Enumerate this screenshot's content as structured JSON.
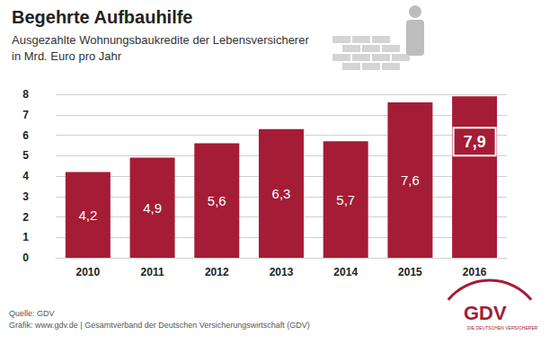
{
  "chart_data": {
    "type": "bar",
    "title": "Begehrte Aufbauhilfe",
    "subtitle": "Ausgezahlte Wohnungsbaukredite der Lebensversicherer\nin Mrd. Euro pro Jahr",
    "categories": [
      "2010",
      "2011",
      "2012",
      "2013",
      "2014",
      "2015",
      "2016"
    ],
    "values": [
      4.2,
      4.9,
      5.6,
      6.3,
      5.7,
      7.6,
      7.9
    ],
    "value_labels": [
      "4,2",
      "4,9",
      "5,6",
      "6,3",
      "5,7",
      "7,6",
      "7,9"
    ],
    "color": "#a51c36",
    "ylim": [
      0,
      8
    ],
    "yticks": [
      0,
      1,
      2,
      3,
      4,
      5,
      6,
      7,
      8
    ],
    "grid": true,
    "data_labels": true,
    "annotations": [
      "Quelle: GDV",
      "Grafik: www.gdv.de | Gesamtverband der Deutschen Versicherungswirtschaft (GDV)",
      "GDV",
      "DIE DEUTSCHEN VERSICHERER"
    ]
  }
}
